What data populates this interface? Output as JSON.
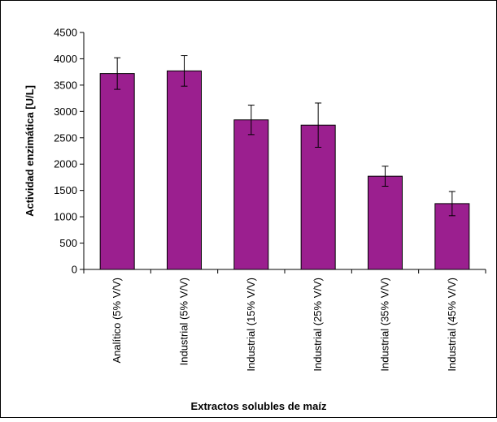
{
  "chart_data": {
    "type": "bar",
    "title": "",
    "xlabel": "Extractos solubles de maíz",
    "ylabel": "Actividad enzimática [U/L]",
    "categories": [
      "Analítico (5% V/V)",
      "Industrial (5% V/V)",
      "Industrial (15% V/V)",
      "Industrial (25% V/V)",
      "Industrial (35% V/V)",
      "Industrial (45% V/V)"
    ],
    "values": [
      3720,
      3770,
      2840,
      2740,
      1770,
      1250
    ],
    "error": [
      300,
      290,
      280,
      420,
      190,
      230
    ],
    "ylim": [
      0,
      4500
    ],
    "yticks": [
      0,
      500,
      1000,
      1500,
      2000,
      2500,
      3000,
      3500,
      4000,
      4500
    ],
    "grid": false,
    "legend": "none",
    "bar_color": "#9b1f8f",
    "bar_edge_color": "#000000"
  }
}
